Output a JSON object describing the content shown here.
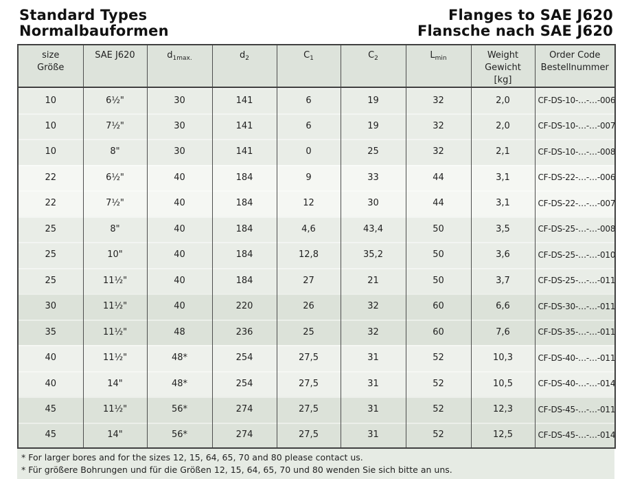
{
  "titles": {
    "left": [
      "Standard Types",
      "Normalbauformen"
    ],
    "right": [
      "Flanges to SAE J620",
      "Flansche nach SAE J620"
    ]
  },
  "table": {
    "headers": [
      {
        "line1": "size",
        "line2": "Größe"
      },
      {
        "line1": "SAE J620"
      },
      {
        "line1": "d",
        "sub": "1max."
      },
      {
        "line1": "d",
        "sub": "2"
      },
      {
        "line1": "C",
        "sub": "1"
      },
      {
        "line1": "C",
        "sub": "2"
      },
      {
        "line1": "L",
        "sub": "min"
      },
      {
        "line1": "Weight",
        "line2": "Gewicht",
        "line3": "[kg]"
      },
      {
        "line1": "Order Code",
        "line2": "Bestellnummer"
      }
    ],
    "rows": [
      {
        "band": "a",
        "cells": [
          "10",
          "6½\"",
          "30",
          "141",
          "6",
          "19",
          "32",
          "2,0",
          "CF-DS-10-…-…-006"
        ]
      },
      {
        "band": "a",
        "cells": [
          "10",
          "7½\"",
          "30",
          "141",
          "6",
          "19",
          "32",
          "2,0",
          "CF-DS-10-…-…-007"
        ]
      },
      {
        "band": "a",
        "cells": [
          "10",
          "8\"",
          "30",
          "141",
          "0",
          "25",
          "32",
          "2,1",
          "CF-DS-10-…-…-008"
        ]
      },
      {
        "band": "b",
        "cells": [
          "22",
          "6½\"",
          "40",
          "184",
          "9",
          "33",
          "44",
          "3,1",
          "CF-DS-22-…-…-006"
        ]
      },
      {
        "band": "b",
        "cells": [
          "22",
          "7½\"",
          "40",
          "184",
          "12",
          "30",
          "44",
          "3,1",
          "CF-DS-22-…-…-007"
        ]
      },
      {
        "band": "c",
        "cells": [
          "25",
          "8\"",
          "40",
          "184",
          "4,6",
          "43,4",
          "50",
          "3,5",
          "CF-DS-25-…-…-008"
        ]
      },
      {
        "band": "c",
        "cells": [
          "25",
          "10\"",
          "40",
          "184",
          "12,8",
          "35,2",
          "50",
          "3,6",
          "CF-DS-25-…-…-010"
        ]
      },
      {
        "band": "c",
        "cells": [
          "25",
          "11½\"",
          "40",
          "184",
          "27",
          "21",
          "50",
          "3,7",
          "CF-DS-25-…-…-011"
        ]
      },
      {
        "band": "d",
        "cells": [
          "30",
          "11½\"",
          "40",
          "220",
          "26",
          "32",
          "60",
          "6,6",
          "CF-DS-30-…-…-011"
        ]
      },
      {
        "band": "d",
        "cells": [
          "35",
          "11½\"",
          "48",
          "236",
          "25",
          "32",
          "60",
          "7,6",
          "CF-DS-35-…-…-011"
        ]
      },
      {
        "band": "e",
        "cells": [
          "40",
          "11½\"",
          "48*",
          "254",
          "27,5",
          "31",
          "52",
          "10,3",
          "CF-DS-40-…-…-011"
        ]
      },
      {
        "band": "e",
        "cells": [
          "40",
          "14\"",
          "48*",
          "254",
          "27,5",
          "31",
          "52",
          "10,5",
          "CF-DS-40-…-…-014"
        ]
      },
      {
        "band": "f",
        "cells": [
          "45",
          "11½\"",
          "56*",
          "274",
          "27,5",
          "31",
          "52",
          "12,3",
          "CF-DS-45-…-…-011"
        ]
      },
      {
        "band": "f",
        "cells": [
          "45",
          "14\"",
          "56*",
          "274",
          "27,5",
          "31",
          "52",
          "12,5",
          "CF-DS-45-…-…-014"
        ]
      }
    ]
  },
  "notes": [
    "* For larger bores and for the sizes 12, 15, 64, 65, 70 and 80 please contact us.",
    "* Für größere Bohrungen und für die Größen 12, 15, 64, 65, 70 und 80 wenden Sie sich bitte an uns."
  ],
  "colors": {
    "header_bg": "#dde3db",
    "band_a": "#e9ede7",
    "band_b": "#f5f7f3",
    "band_c": "#e9ede7",
    "band_d": "#dce2d9",
    "band_e": "#eef1ec",
    "band_f": "#dce2d9",
    "notes_bg": "#e6ebe4",
    "outer_border": "#3f3f3f",
    "column_line": "#4c4c4c"
  }
}
